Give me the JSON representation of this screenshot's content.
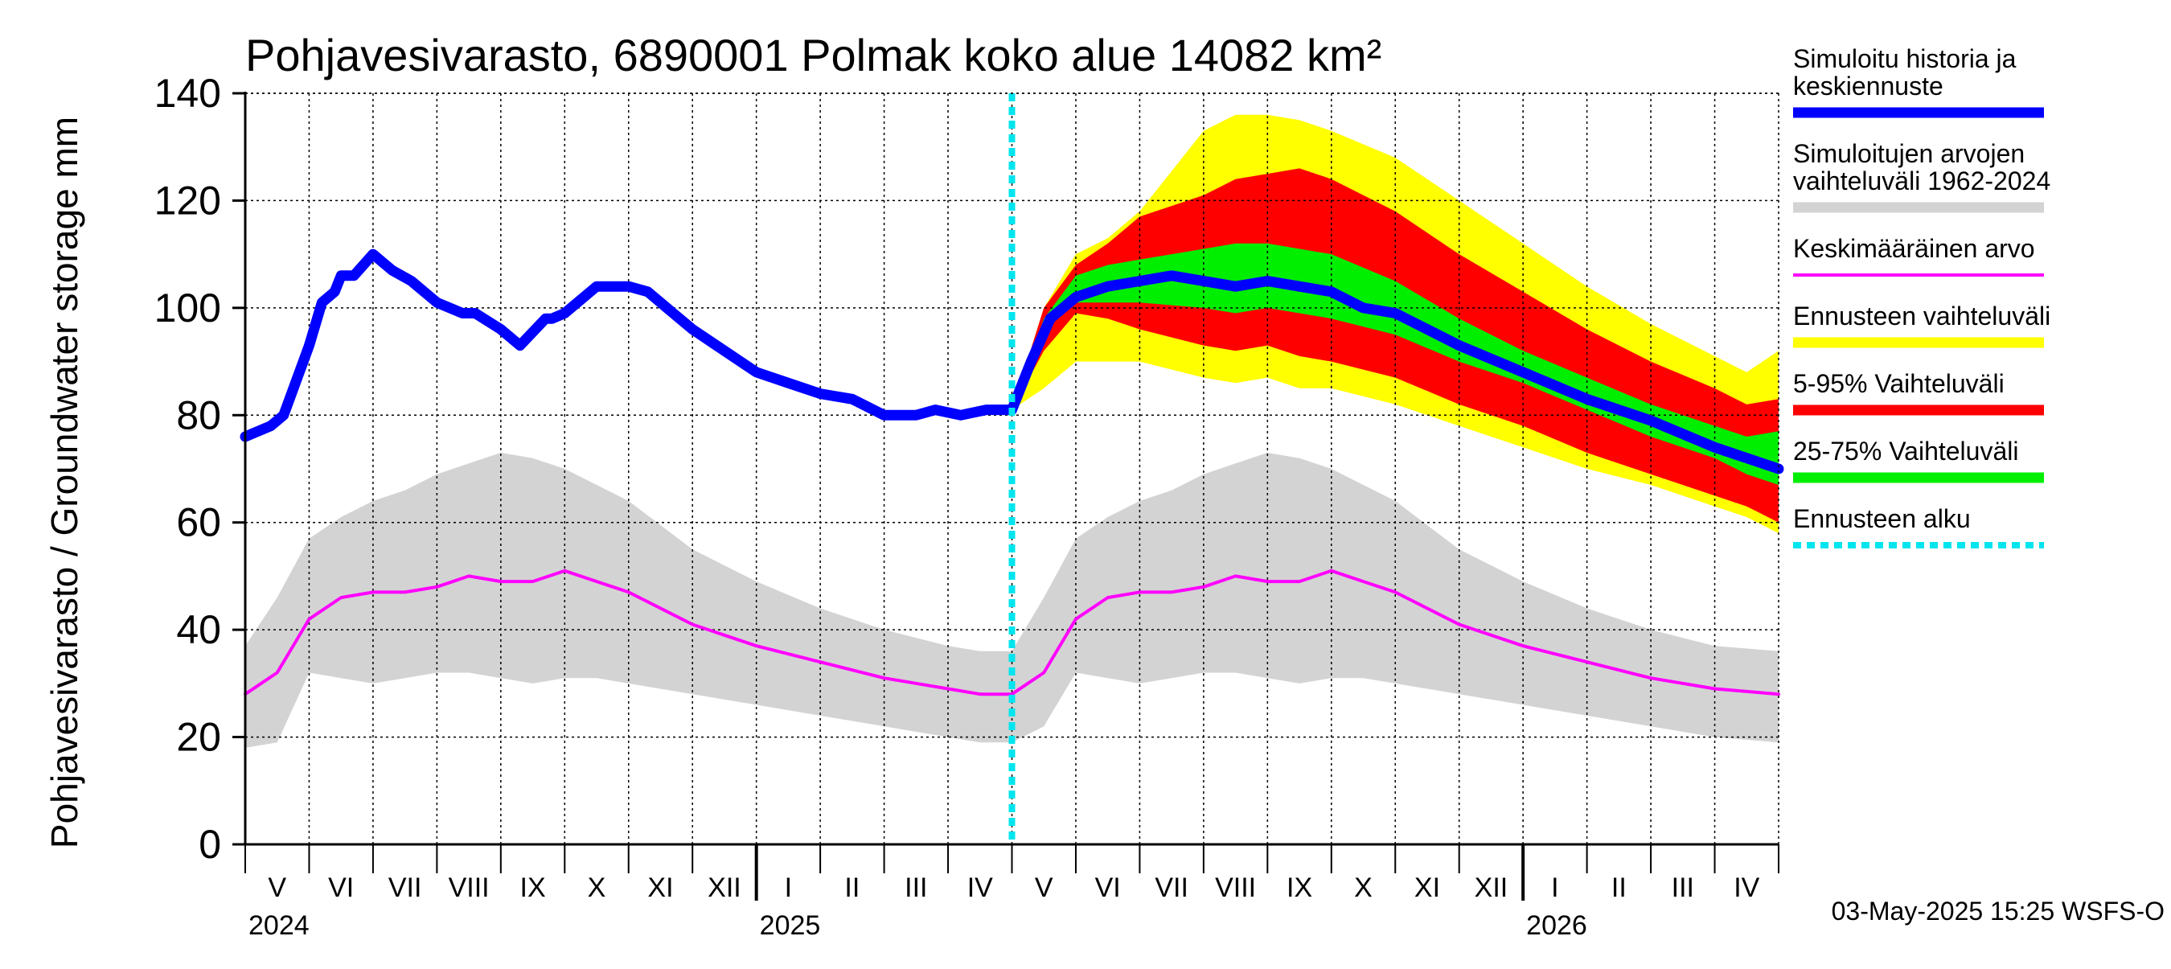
{
  "chart_data": {
    "type": "area",
    "title": "Pohjavesivarasto, 6890001 Polmak koko alue 14082 km²",
    "ylabel": "Pohjavesivarasto / Groundwater storage   mm",
    "ylim": [
      0,
      140
    ],
    "yticks": [
      0,
      20,
      40,
      60,
      80,
      100,
      120,
      140
    ],
    "grid": true,
    "x_range_months": [
      0,
      24
    ],
    "forecast_start_month": 12.0,
    "months": [
      "V",
      "VI",
      "VII",
      "VIII",
      "IX",
      "X",
      "XI",
      "XII",
      "I",
      "II",
      "III",
      "IV",
      "V",
      "VI",
      "VII",
      "VIII",
      "IX",
      "X",
      "XI",
      "XII",
      "I",
      "II",
      "III",
      "IV"
    ],
    "years": [
      {
        "label": "2024",
        "month": 0
      },
      {
        "label": "2025",
        "month": 8
      },
      {
        "label": "2026",
        "month": 20
      }
    ],
    "footer": "03-May-2025 15:25 WSFS-O",
    "legend": [
      {
        "key": "sim",
        "label": "Simuloitu historia ja keskiennuste",
        "lines": [
          "Simuloitu historia ja",
          "keskiennuste"
        ],
        "color": "#0000ff",
        "style": "thick"
      },
      {
        "key": "range",
        "label": "Simuloitujen arvojen vaihteluväli 1962-2024",
        "lines": [
          "Simuloitujen arvojen",
          "vaihteluväli 1962-2024"
        ],
        "color": "#d3d3d3",
        "style": "thick"
      },
      {
        "key": "mean",
        "label": "Keskimääräinen arvo",
        "lines": [
          "Keskimääräinen arvo"
        ],
        "color": "#ff00ff",
        "style": "thin"
      },
      {
        "key": "fc_range",
        "label": "Ennusteen vaihteluväli",
        "lines": [
          "Ennusteen vaihteluväli"
        ],
        "color": "#ffff00",
        "style": "thick"
      },
      {
        "key": "p5_95",
        "label": "5-95% Vaihteluväli",
        "lines": [
          "5-95% Vaihteluväli"
        ],
        "color": "#ff0000",
        "style": "thick"
      },
      {
        "key": "p25_75",
        "label": "25-75% Vaihteluväli",
        "lines": [
          "25-75% Vaihteluväli"
        ],
        "color": "#00ee00",
        "style": "thick"
      },
      {
        "key": "fc_start",
        "label": "Ennusteen alku",
        "lines": [
          "Ennusteen alku"
        ],
        "color": "#00e5ee",
        "style": "dotted"
      }
    ],
    "series": [
      {
        "name": "Simuloitu historia ja keskiennuste",
        "color": "#0000ff",
        "x": [
          0,
          0.4,
          0.6,
          1.0,
          1.2,
          1.4,
          1.5,
          1.7,
          2.0,
          2.3,
          2.6,
          3.0,
          3.4,
          3.6,
          4.0,
          4.3,
          4.7,
          4.8,
          5.0,
          5.5,
          5.8,
          6.0,
          6.3,
          6.6,
          7.0,
          7.5,
          8.0,
          8.5,
          9.0,
          9.5,
          10.0,
          10.5,
          10.8,
          11.2,
          11.6,
          12.0,
          12.3,
          12.6,
          13.0,
          13.5,
          14.0,
          14.5,
          15.0,
          15.5,
          16.0,
          16.5,
          17.0,
          17.5,
          18.0,
          18.5,
          19.0,
          20.0,
          21.0,
          22.0,
          23.0,
          24.0
        ],
        "values": [
          76,
          78,
          80,
          93,
          101,
          103,
          106,
          106,
          110,
          107,
          105,
          101,
          99,
          99,
          96,
          93,
          98,
          98,
          99,
          104,
          104,
          104,
          103,
          100,
          96,
          92,
          88,
          86,
          84,
          83,
          80,
          80,
          81,
          80,
          81,
          81,
          90,
          98,
          102,
          104,
          105,
          106,
          105,
          104,
          105,
          104,
          103,
          100,
          99,
          96,
          93,
          88,
          83,
          79,
          74,
          70
        ]
      },
      {
        "name": "Keskimääräinen arvo",
        "color": "#ff00ff",
        "x": [
          0,
          0.5,
          1.0,
          1.5,
          2.0,
          2.5,
          3.0,
          3.5,
          4.0,
          4.5,
          5.0,
          5.5,
          6.0,
          7.0,
          8.0,
          9.0,
          10.0,
          11.0,
          11.5,
          12.0,
          12.5,
          13.0,
          13.5,
          14.0,
          14.5,
          15.0,
          15.5,
          16.0,
          16.5,
          17.0,
          17.5,
          18.0,
          19.0,
          20.0,
          21.0,
          22.0,
          23.0,
          24.0
        ],
        "values": [
          28,
          32,
          42,
          46,
          47,
          47,
          48,
          50,
          49,
          49,
          51,
          49,
          47,
          41,
          37,
          34,
          31,
          29,
          28,
          28,
          32,
          42,
          46,
          47,
          47,
          48,
          50,
          49,
          49,
          51,
          49,
          47,
          41,
          37,
          34,
          31,
          29,
          28
        ]
      },
      {
        "name": "Simuloitujen arvojen vaihteluväli 1962-2024",
        "color": "#d3d3d3",
        "x": [
          0,
          0.5,
          1.0,
          1.5,
          2.0,
          2.5,
          3.0,
          3.5,
          4.0,
          4.5,
          5.0,
          5.5,
          6.0,
          7.0,
          8.0,
          9.0,
          10.0,
          11.0,
          11.5,
          12.0,
          12.5,
          13.0,
          13.5,
          14.0,
          14.5,
          15.0,
          15.5,
          16.0,
          16.5,
          17.0,
          17.5,
          18.0,
          19.0,
          20.0,
          21.0,
          22.0,
          23.0,
          24.0
        ],
        "lower": [
          18,
          19,
          32,
          31,
          30,
          31,
          32,
          32,
          31,
          30,
          31,
          31,
          30,
          28,
          26,
          24,
          22,
          20,
          19,
          19,
          22,
          32,
          31,
          30,
          31,
          32,
          32,
          31,
          30,
          31,
          31,
          30,
          28,
          26,
          24,
          22,
          20,
          19
        ],
        "upper": [
          37,
          46,
          57,
          61,
          64,
          66,
          69,
          71,
          73,
          72,
          70,
          67,
          64,
          55,
          49,
          44,
          40,
          37,
          36,
          36,
          46,
          57,
          61,
          64,
          66,
          69,
          71,
          73,
          72,
          70,
          67,
          64,
          55,
          49,
          44,
          40,
          37,
          36
        ]
      },
      {
        "name": "Ennusteen vaihteluväli",
        "color": "#ffff00",
        "x": [
          12.0,
          12.5,
          13.0,
          13.5,
          14.0,
          15.0,
          15.5,
          16.0,
          16.5,
          17.0,
          18.0,
          19.0,
          20.0,
          21.0,
          22.0,
          23.0,
          23.5,
          24.0
        ],
        "lower": [
          81,
          85,
          90,
          90,
          90,
          87,
          86,
          87,
          85,
          85,
          82,
          78,
          74,
          70,
          67,
          63,
          61,
          58
        ],
        "upper": [
          81,
          100,
          110,
          113,
          118,
          133,
          136,
          136,
          135,
          133,
          128,
          120,
          112,
          104,
          97,
          91,
          88,
          92
        ]
      },
      {
        "name": "5-95% Vaihteluväli",
        "color": "#ff0000",
        "x": [
          12.0,
          12.5,
          13.0,
          13.5,
          14.0,
          15.0,
          15.5,
          16.0,
          16.5,
          17.0,
          18.0,
          19.0,
          20.0,
          21.0,
          22.0,
          23.0,
          23.5,
          24.0
        ],
        "lower": [
          81,
          92,
          99,
          98,
          96,
          93,
          92,
          93,
          91,
          90,
          87,
          82,
          78,
          73,
          69,
          65,
          63,
          60
        ],
        "upper": [
          81,
          100,
          108,
          112,
          117,
          121,
          124,
          125,
          126,
          124,
          118,
          110,
          103,
          96,
          90,
          85,
          82,
          83
        ]
      },
      {
        "name": "25-75% Vaihteluväli",
        "color": "#00ee00",
        "x": [
          12.0,
          12.5,
          13.0,
          13.5,
          14.0,
          15.0,
          15.5,
          16.0,
          16.5,
          17.0,
          18.0,
          19.0,
          20.0,
          21.0,
          22.0,
          23.0,
          23.5,
          24.0
        ],
        "lower": [
          81,
          96,
          101,
          101,
          101,
          100,
          99,
          100,
          99,
          98,
          95,
          90,
          86,
          81,
          76,
          72,
          69,
          67
        ],
        "upper": [
          81,
          98,
          106,
          108,
          109,
          111,
          112,
          112,
          111,
          110,
          105,
          98,
          92,
          87,
          82,
          78,
          76,
          77
        ]
      }
    ]
  }
}
